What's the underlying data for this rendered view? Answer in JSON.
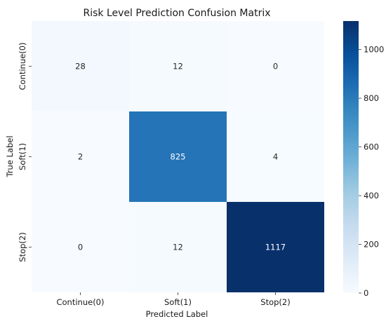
{
  "chart_data": {
    "type": "heatmap",
    "title": "Risk Level Prediction Confusion Matrix",
    "xlabel": "Predicted Label",
    "ylabel": "True Label",
    "x_categories": [
      "Continue(0)",
      "Soft(1)",
      "Stop(2)"
    ],
    "y_categories": [
      "Continue(0)",
      "Soft(1)",
      "Stop(2)"
    ],
    "values": [
      [
        28,
        12,
        0
      ],
      [
        2,
        825,
        4
      ],
      [
        0,
        12,
        1117
      ]
    ],
    "colormap": "Blues",
    "color_range": [
      0,
      1117
    ],
    "colorbar_ticks": [
      0,
      200,
      400,
      600,
      800,
      1000
    ]
  }
}
